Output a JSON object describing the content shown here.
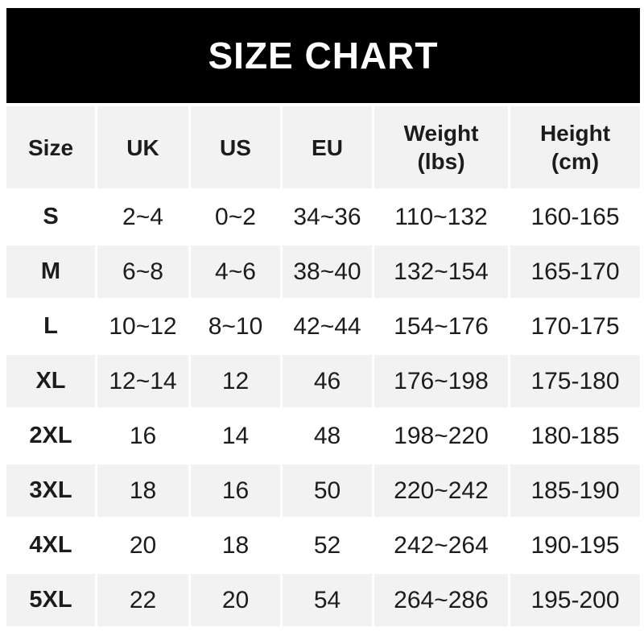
{
  "title": "SIZE CHART",
  "colors": {
    "banner_bg": "#000000",
    "banner_text": "#ffffff",
    "stripe_gray": "#f2f2f2",
    "row_white": "#ffffff",
    "text": "#1c1c1e",
    "page_bg": "#ffffff"
  },
  "chart_data": {
    "type": "table",
    "title": "SIZE CHART",
    "columns": [
      "Size",
      "UK",
      "US",
      "EU",
      "Weight (lbs)",
      "Height (cm)"
    ],
    "header_display": [
      "Size",
      "UK",
      "US",
      "EU",
      "Weight\n(lbs)",
      "Height\n(cm)"
    ],
    "rows": [
      {
        "size": "S",
        "uk": "2~4",
        "us": "0~2",
        "eu": "34~36",
        "weight": "110~132",
        "height": "160-165"
      },
      {
        "size": "M",
        "uk": "6~8",
        "us": "4~6",
        "eu": "38~40",
        "weight": "132~154",
        "height": "165-170"
      },
      {
        "size": "L",
        "uk": "10~12",
        "us": "8~10",
        "eu": "42~44",
        "weight": "154~176",
        "height": "170-175"
      },
      {
        "size": "XL",
        "uk": "12~14",
        "us": "12",
        "eu": "46",
        "weight": "176~198",
        "height": "175-180"
      },
      {
        "size": "2XL",
        "uk": "16",
        "us": "14",
        "eu": "48",
        "weight": "198~220",
        "height": "180-185"
      },
      {
        "size": "3XL",
        "uk": "18",
        "us": "16",
        "eu": "50",
        "weight": "220~242",
        "height": "185-190"
      },
      {
        "size": "4XL",
        "uk": "20",
        "us": "18",
        "eu": "52",
        "weight": "242~264",
        "height": "190-195"
      },
      {
        "size": "5XL",
        "uk": "22",
        "us": "20",
        "eu": "54",
        "weight": "264~286",
        "height": "195-200"
      }
    ]
  }
}
